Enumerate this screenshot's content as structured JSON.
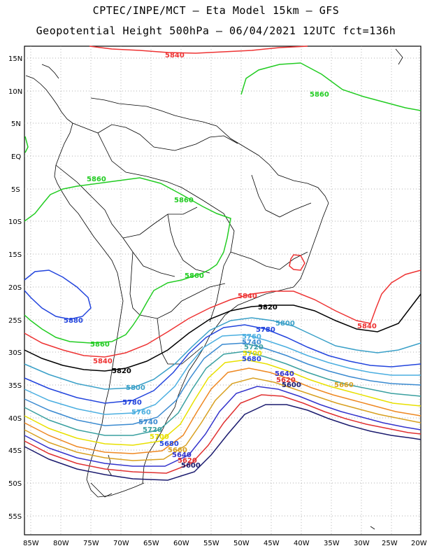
{
  "header": {
    "line1": "CPTEC/INPE/MCT –  Eta Model 15km – GFS",
    "line2": "Geopotential Height 500hPa – 06/04/2021 12UTC fct=136h"
  },
  "axes": {
    "lat_ticks": [
      "15N",
      "10N",
      "5N",
      "EQ",
      "5S",
      "10S",
      "15S",
      "20S",
      "25S",
      "30S",
      "35S",
      "40S",
      "45S",
      "50S",
      "55S"
    ],
    "lon_ticks": [
      "85W",
      "80W",
      "75W",
      "70W",
      "65W",
      "60W",
      "55W",
      "50W",
      "45W",
      "40W",
      "35W",
      "30W",
      "25W",
      "20W"
    ],
    "lat_range": [
      17.5,
      -57.5
    ],
    "lon_range": [
      -86,
      -20
    ]
  },
  "contour_colors": {
    "5600": "#1a1a6e",
    "5620": "#e03030",
    "5640": "#3333cc",
    "5660": "#d8a020",
    "5680": "#ee8822",
    "5700": "#e8e000",
    "5720": "#3aa0a0",
    "5740": "#3a8ad0",
    "5760": "#4aaee0",
    "5780": "#2244dd",
    "5800": "#3aa0c8",
    "5820": "#000000",
    "5840": "#ee3333",
    "5860": "#22cc22",
    "5880": "#2244dd"
  },
  "contour_labels": [
    {
      "text": "5840",
      "key": "5840"
    },
    {
      "text": "5860",
      "key": "5860"
    },
    {
      "text": "5860",
      "key": "5860"
    },
    {
      "text": "5860",
      "key": "5860"
    },
    {
      "text": "5860",
      "key": "5860"
    },
    {
      "text": "5860",
      "key": "5860"
    },
    {
      "text": "5880",
      "key": "5880"
    },
    {
      "text": "5840",
      "key": "5840"
    },
    {
      "text": "5840",
      "key": "5840"
    },
    {
      "text": "5840",
      "key": "5840"
    },
    {
      "text": "5820",
      "key": "5820"
    },
    {
      "text": "5820",
      "key": "5820"
    },
    {
      "text": "5800",
      "key": "5800"
    },
    {
      "text": "5800",
      "key": "5800"
    },
    {
      "text": "5780",
      "key": "5780"
    },
    {
      "text": "5780",
      "key": "5780"
    },
    {
      "text": "5760",
      "key": "5760"
    },
    {
      "text": "5760",
      "key": "5760"
    },
    {
      "text": "5740",
      "key": "5740"
    },
    {
      "text": "5740",
      "key": "5740"
    },
    {
      "text": "5720",
      "key": "5720"
    },
    {
      "text": "5720",
      "key": "5720"
    },
    {
      "text": "5700",
      "key": "5700"
    },
    {
      "text": "5700",
      "key": "5700"
    },
    {
      "text": "5680",
      "key": "5680"
    },
    {
      "text": "5680",
      "key": "5680"
    },
    {
      "text": "5660",
      "key": "5660"
    },
    {
      "text": "5660",
      "key": "5660"
    },
    {
      "text": "5640",
      "key": "5640"
    },
    {
      "text": "5640",
      "key": "5640"
    },
    {
      "text": "5620",
      "key": "5620"
    },
    {
      "text": "5620",
      "key": "5620"
    },
    {
      "text": "5600",
      "key": "5600"
    },
    {
      "text": "5600",
      "key": "5600"
    }
  ]
}
